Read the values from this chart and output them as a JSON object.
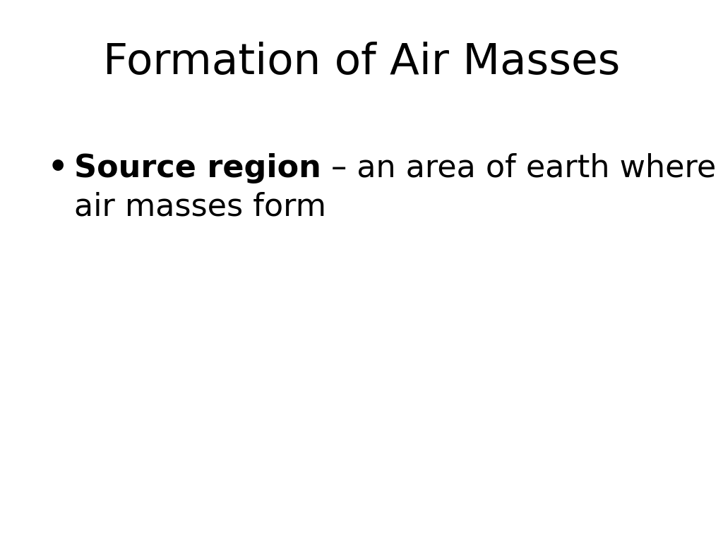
{
  "title": "Formation of Air Masses",
  "title_fontsize": 44,
  "title_color": "#000000",
  "background_color": "#ffffff",
  "bullet_char": "•",
  "bullet_fontsize": 32,
  "bold_text": "Source region",
  "bold_fontsize": 32,
  "regular_text": " – an area of earth where",
  "regular_fontsize": 32,
  "second_line": "air masses form",
  "second_line_fontsize": 32,
  "text_color": "#000000"
}
